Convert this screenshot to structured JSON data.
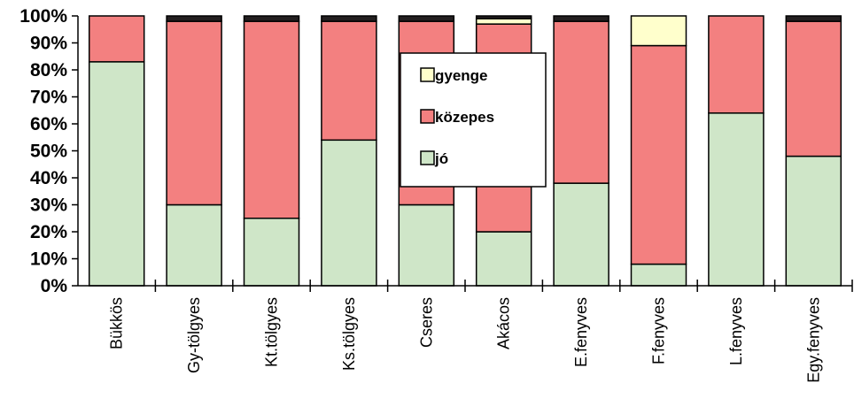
{
  "chart_data": {
    "type": "bar",
    "stacked": true,
    "percent": true,
    "categories": [
      "Bükkös",
      "Gy-tölgyes",
      "Kt.tölgyes",
      "Ks.tölgyes",
      "Cseres",
      "Akácos",
      "E.fenyves",
      "F.fenyves",
      "L.fenyves",
      "Egy.fenyves"
    ],
    "series": [
      {
        "name": "jó",
        "color": "#cfe6c8",
        "values": [
          83,
          30,
          25,
          54,
          30,
          20,
          38,
          8,
          64,
          48
        ]
      },
      {
        "name": "közepes",
        "color": "#f38080",
        "values": [
          17,
          68,
          73,
          44,
          68,
          77,
          60,
          81,
          36,
          50
        ]
      },
      {
        "name": "gyenge",
        "color": "#ffffcc",
        "values": [
          0,
          0,
          0,
          0,
          0,
          2,
          0,
          11,
          0,
          0
        ]
      },
      {
        "name": "",
        "color": "#231f20",
        "values": [
          0,
          2,
          2,
          2,
          2,
          1,
          2,
          0,
          0,
          2
        ]
      }
    ],
    "yticks": [
      "0%",
      "10%",
      "20%",
      "30%",
      "40%",
      "50%",
      "60%",
      "70%",
      "80%",
      "90%",
      "100%"
    ],
    "ylim": [
      0,
      100
    ],
    "legend": {
      "position": "center",
      "order": [
        "gyenge",
        "közepes",
        "jó"
      ]
    },
    "title": "",
    "xlabel": "",
    "ylabel": ""
  }
}
